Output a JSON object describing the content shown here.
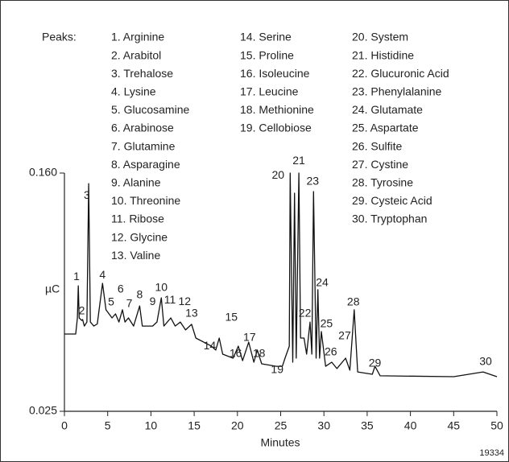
{
  "chart_data": {
    "type": "line",
    "peaks_title": "Peaks:",
    "peak_list": [
      "1. Arginine",
      "2. Arabitol",
      "3. Trehalose",
      "4. Lysine",
      "5. Glucosamine",
      "6. Arabinose",
      "7. Glutamine",
      "8. Asparagine",
      "9. Alanine",
      "10. Threonine",
      "11. Ribose",
      "12. Glycine",
      "13. Valine",
      "14. Serine",
      "15. Proline",
      "16. Isoleucine",
      "17. Leucine",
      "18. Methionine",
      "19. Cellobiose",
      "20. System",
      "21. Histidine",
      "22. Glucuronic Acid",
      "23. Phenylalanine",
      "24. Glutamate",
      "25. Aspartate",
      "26. Sulfite",
      "27. Cystine",
      "28. Tyrosine",
      "29. Cysteic Acid",
      "30. Tryptophan"
    ],
    "x_label": "Minutes",
    "y_label": "µC",
    "note": "19334",
    "color": "#111111",
    "xlim": [
      0,
      50
    ],
    "ylim": [
      0.025,
      0.16
    ],
    "xticks": [
      0,
      5,
      10,
      15,
      20,
      25,
      30,
      35,
      40,
      45,
      50
    ],
    "yticks": [
      0.025,
      {
        "value": 0.16,
        "label": "0.160"
      }
    ],
    "x": [
      0,
      1.3,
      1.5,
      1.6,
      1.7,
      2.0,
      2.1,
      2.3,
      2.6,
      2.8,
      3.0,
      3.4,
      3.8,
      4.4,
      4.8,
      5.5,
      5.9,
      6.3,
      6.7,
      7.0,
      7.4,
      8.0,
      8.7,
      9.0,
      10.2,
      10.7,
      11.2,
      11.5,
      12.3,
      12.8,
      13.4,
      14.0,
      14.7,
      15.2,
      17.0,
      17.5,
      17.9,
      18.3,
      19.5,
      20.1,
      20.6,
      21.3,
      21.9,
      22.3,
      22.8,
      24.5,
      25.2,
      25.5,
      26.0,
      26.1,
      26.4,
      26.6,
      26.8,
      27.1,
      27.3,
      27.7,
      28.0,
      28.4,
      28.6,
      28.8,
      29.1,
      29.3,
      29.5,
      29.7,
      30.2,
      30.9,
      31.5,
      32.5,
      33.0,
      33.5,
      33.9,
      35.6,
      35.9,
      36.5,
      45,
      48.4,
      50
    ],
    "values": [
      0.0688,
      0.0688,
      0.0779,
      0.0961,
      0.0779,
      0.0765,
      0.077,
      0.0733,
      0.0756,
      0.154,
      0.0756,
      0.0733,
      0.0745,
      0.0975,
      0.0825,
      0.0779,
      0.0802,
      0.0756,
      0.0825,
      0.0756,
      0.0779,
      0.0733,
      0.0847,
      0.0733,
      0.0733,
      0.0756,
      0.0893,
      0.0733,
      0.0779,
      0.0733,
      0.0756,
      0.0711,
      0.0743,
      0.0665,
      0.0619,
      0.0597,
      0.0665,
      0.0574,
      0.0551,
      0.0619,
      0.0537,
      0.0642,
      0.0528,
      0.0597,
      0.0519,
      0.0505,
      0.0505,
      0.0551,
      0.0619,
      0.16,
      0.0528,
      0.1486,
      0.0551,
      0.16,
      0.0665,
      0.0665,
      0.0574,
      0.0756,
      0.0574,
      0.1495,
      0.0551,
      0.0939,
      0.0551,
      0.0702,
      0.0505,
      0.0528,
      0.0492,
      0.0551,
      0.0483,
      0.0825,
      0.0473,
      0.046,
      0.0505,
      0.0451,
      0.0446,
      0.0473,
      0.0446
    ],
    "annotations": [
      {
        "text": "1",
        "x": 1.4,
        "y": 0.101
      },
      {
        "text": "2",
        "x": 2.0,
        "y": 0.0816
      },
      {
        "text": "3",
        "x": 2.6,
        "y": 0.147
      },
      {
        "text": "4",
        "x": 4.4,
        "y": 0.102
      },
      {
        "text": "5",
        "x": 5.4,
        "y": 0.0866
      },
      {
        "text": "6",
        "x": 6.5,
        "y": 0.0939
      },
      {
        "text": "7",
        "x": 7.5,
        "y": 0.0857
      },
      {
        "text": "8",
        "x": 8.7,
        "y": 0.0907
      },
      {
        "text": "9",
        "x": 10.2,
        "y": 0.087
      },
      {
        "text": "10",
        "x": 11.2,
        "y": 0.0948
      },
      {
        "text": "11",
        "x": 12.2,
        "y": 0.0879
      },
      {
        "text": "12",
        "x": 13.9,
        "y": 0.087
      },
      {
        "text": "13",
        "x": 14.7,
        "y": 0.0802
      },
      {
        "text": "14",
        "x": 16.8,
        "y": 0.0619
      },
      {
        "text": "15",
        "x": 19.3,
        "y": 0.0779
      },
      {
        "text": "16",
        "x": 19.8,
        "y": 0.0574
      },
      {
        "text": "17",
        "x": 21.4,
        "y": 0.0665
      },
      {
        "text": "18",
        "x": 22.5,
        "y": 0.0574
      },
      {
        "text": "19",
        "x": 24.6,
        "y": 0.0483
      },
      {
        "text": "20",
        "x": 24.7,
        "y": 0.1586
      },
      {
        "text": "21",
        "x": 27.1,
        "y": 0.1668
      },
      {
        "text": "22",
        "x": 27.8,
        "y": 0.0802
      },
      {
        "text": "23",
        "x": 28.7,
        "y": 0.155
      },
      {
        "text": "24",
        "x": 29.8,
        "y": 0.0975
      },
      {
        "text": "25",
        "x": 30.3,
        "y": 0.0743
      },
      {
        "text": "26",
        "x": 30.8,
        "y": 0.0583
      },
      {
        "text": "27",
        "x": 32.4,
        "y": 0.0674
      },
      {
        "text": "28",
        "x": 33.4,
        "y": 0.0866
      },
      {
        "text": "29",
        "x": 35.9,
        "y": 0.0519
      },
      {
        "text": "30",
        "x": 48.7,
        "y": 0.0528
      }
    ]
  }
}
